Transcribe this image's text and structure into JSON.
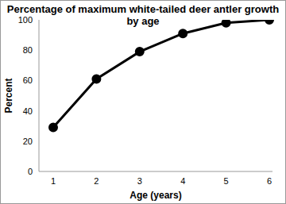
{
  "chart_data": {
    "type": "line",
    "title": "Percentage of maximum white-tailed deer antler growth by age",
    "x_label": "Age (years)",
    "y_label": "Percent",
    "categories": [
      "1",
      "2",
      "3",
      "4",
      "5",
      "6"
    ],
    "values": [
      29,
      61,
      79,
      91,
      98,
      100
    ],
    "color": "#000000",
    "marker": "circle",
    "ylim": [
      0,
      100
    ],
    "yticks": [
      0,
      20,
      40,
      60,
      80,
      100
    ],
    "grid": false
  }
}
